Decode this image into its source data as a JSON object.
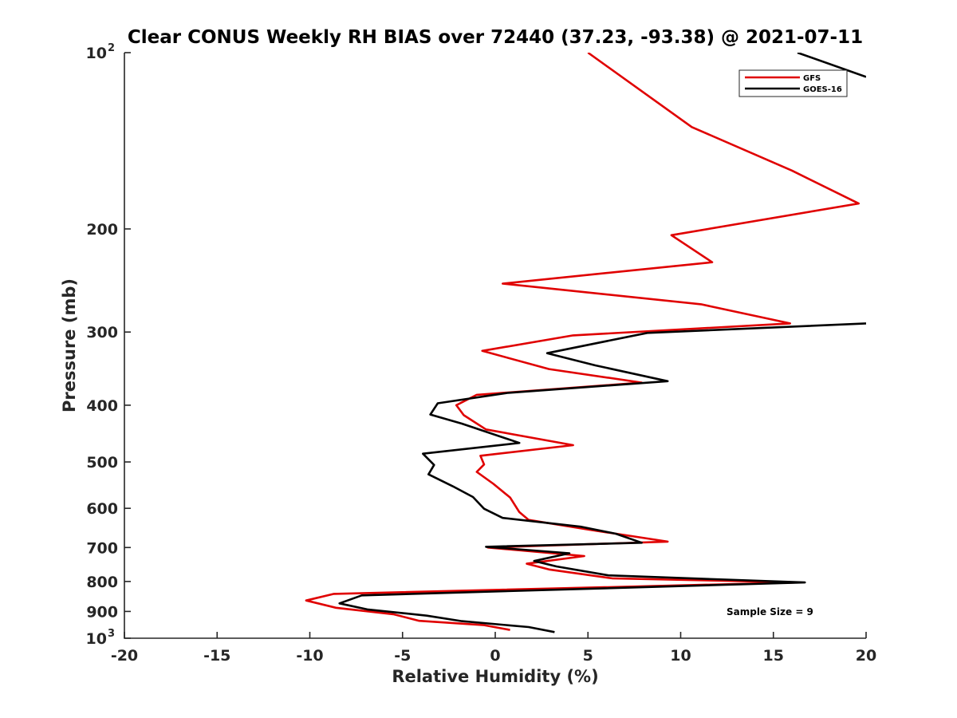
{
  "chart_data": {
    "type": "line",
    "title": "Clear CONUS Weekly RH BIAS over 72440 (37.23, -93.38) @ 2021-07-11",
    "xlabel": "Relative Humidity (%)",
    "ylabel": "Pressure (mb)",
    "xlim": [
      -20,
      20
    ],
    "ylim": [
      100,
      1000
    ],
    "y_scale": "log",
    "y_reversed": true,
    "grid": false,
    "legend_position": "top-right",
    "x_ticks": [
      {
        "value": -20,
        "label": "-20"
      },
      {
        "value": -15,
        "label": "-15"
      },
      {
        "value": -10,
        "label": "-10"
      },
      {
        "value": -5,
        "label": "-5"
      },
      {
        "value": 0,
        "label": "0"
      },
      {
        "value": 5,
        "label": "5"
      },
      {
        "value": 10,
        "label": "10"
      },
      {
        "value": 15,
        "label": "15"
      },
      {
        "value": 20,
        "label": "20"
      }
    ],
    "y_ticks": [
      {
        "value": 100,
        "base": "10",
        "exp": "2"
      },
      {
        "value": 200,
        "label": "200"
      },
      {
        "value": 300,
        "label": "300"
      },
      {
        "value": 400,
        "label": "400"
      },
      {
        "value": 500,
        "label": "500"
      },
      {
        "value": 600,
        "label": "600"
      },
      {
        "value": 700,
        "label": "700"
      },
      {
        "value": 800,
        "label": "800"
      },
      {
        "value": 900,
        "label": "900"
      },
      {
        "value": 1000,
        "base": "10",
        "exp": "3"
      }
    ],
    "annotation": "Sample Size = 9",
    "series": [
      {
        "name": "GFS",
        "color": "#e00000",
        "points": [
          {
            "x": 5.0,
            "p": 100
          },
          {
            "x": 10.6,
            "p": 134
          },
          {
            "x": 16.0,
            "p": 159
          },
          {
            "x": 19.6,
            "p": 181
          },
          {
            "x": 9.5,
            "p": 205
          },
          {
            "x": 11.7,
            "p": 228
          },
          {
            "x": 0.4,
            "p": 248
          },
          {
            "x": 11.1,
            "p": 269
          },
          {
            "x": 15.9,
            "p": 290
          },
          {
            "x": 4.2,
            "p": 304
          },
          {
            "x": -0.7,
            "p": 323
          },
          {
            "x": 2.9,
            "p": 347
          },
          {
            "x": 7.9,
            "p": 366
          },
          {
            "x": -1.0,
            "p": 384
          },
          {
            "x": -2.1,
            "p": 400
          },
          {
            "x": -1.7,
            "p": 416
          },
          {
            "x": -0.5,
            "p": 440
          },
          {
            "x": 4.2,
            "p": 468
          },
          {
            "x": -0.8,
            "p": 488
          },
          {
            "x": -0.6,
            "p": 505
          },
          {
            "x": -1.0,
            "p": 520
          },
          {
            "x": -0.1,
            "p": 545
          },
          {
            "x": 0.8,
            "p": 575
          },
          {
            "x": 1.3,
            "p": 609
          },
          {
            "x": 1.8,
            "p": 628
          },
          {
            "x": 5.1,
            "p": 653
          },
          {
            "x": 9.3,
            "p": 684
          },
          {
            "x": -0.4,
            "p": 700
          },
          {
            "x": 4.8,
            "p": 724
          },
          {
            "x": 1.7,
            "p": 746
          },
          {
            "x": 2.9,
            "p": 763
          },
          {
            "x": 6.3,
            "p": 790
          },
          {
            "x": 16.4,
            "p": 803
          },
          {
            "x": -8.7,
            "p": 840
          },
          {
            "x": -10.2,
            "p": 862
          },
          {
            "x": -8.6,
            "p": 887
          },
          {
            "x": -5.5,
            "p": 910
          },
          {
            "x": -4.1,
            "p": 934
          },
          {
            "x": -0.6,
            "p": 950
          },
          {
            "x": 0.8,
            "p": 968
          }
        ]
      },
      {
        "name": "GOES-16",
        "color": "#000000",
        "points": [
          {
            "x": 16.3,
            "p": 100
          },
          {
            "x": 20.0,
            "p": 110
          },
          null,
          {
            "x": 20.0,
            "p": 290
          },
          {
            "x": 8.2,
            "p": 301
          },
          {
            "x": 2.8,
            "p": 326
          },
          {
            "x": 5.4,
            "p": 342
          },
          {
            "x": 9.3,
            "p": 364
          },
          {
            "x": 0.7,
            "p": 381
          },
          {
            "x": -3.1,
            "p": 397
          },
          {
            "x": -3.5,
            "p": 415
          },
          {
            "x": -1.8,
            "p": 430
          },
          {
            "x": 1.3,
            "p": 464
          },
          {
            "x": -3.9,
            "p": 484
          },
          {
            "x": -3.3,
            "p": 506
          },
          {
            "x": -3.6,
            "p": 525
          },
          {
            "x": -2.3,
            "p": 550
          },
          {
            "x": -1.2,
            "p": 574
          },
          {
            "x": -0.6,
            "p": 601
          },
          {
            "x": 0.4,
            "p": 623
          },
          {
            "x": 4.6,
            "p": 645
          },
          {
            "x": 6.5,
            "p": 663
          },
          {
            "x": 7.9,
            "p": 687
          },
          {
            "x": -0.5,
            "p": 698
          },
          {
            "x": 4.0,
            "p": 716
          },
          {
            "x": 2.1,
            "p": 738
          },
          {
            "x": 3.3,
            "p": 754
          },
          {
            "x": 6.1,
            "p": 781
          },
          {
            "x": 16.7,
            "p": 803
          },
          {
            "x": -7.2,
            "p": 845
          },
          {
            "x": -8.4,
            "p": 872
          },
          {
            "x": -6.9,
            "p": 893
          },
          {
            "x": -3.7,
            "p": 915
          },
          {
            "x": -1.8,
            "p": 935
          },
          {
            "x": 1.8,
            "p": 957
          },
          {
            "x": 3.2,
            "p": 976
          }
        ]
      }
    ]
  }
}
